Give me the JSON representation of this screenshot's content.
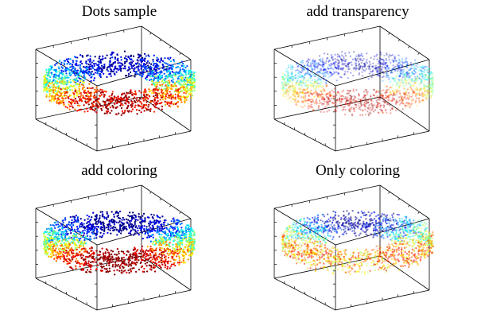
{
  "chart_data": [
    {
      "type": "scatter",
      "subtype": "3d-dots",
      "title": "Dots sample",
      "shape": "torus-like ring cloud",
      "point_count": 1800,
      "coloring": "jet colormap by height (z)",
      "alpha": 1.0,
      "axes_box": true,
      "grid": false,
      "tick_labels": "none"
    },
    {
      "type": "scatter",
      "subtype": "3d-dots",
      "title": "add transparency",
      "shape": "torus-like ring cloud",
      "point_count": 1800,
      "coloring": "jet colormap by height (z)",
      "alpha": 0.35,
      "axes_box": true,
      "grid": false,
      "tick_labels": "none"
    },
    {
      "type": "scatter",
      "subtype": "3d-dots",
      "title": "add coloring",
      "shape": "torus-like ring cloud",
      "point_count": 1800,
      "coloring": "jet colormap by separate color data (low at back, high at front)",
      "alpha": 1.0,
      "axes_box": true,
      "grid": false,
      "tick_labels": "none"
    },
    {
      "type": "scatter",
      "subtype": "3d-dots",
      "title": "Only coloring",
      "shape": "torus-like ring cloud",
      "point_count": 1800,
      "coloring": "jet colormap by separate color data, mixed",
      "alpha": 0.55,
      "axes_box": true,
      "grid": false,
      "tick_labels": "none"
    }
  ],
  "colors": {
    "axis": "#000000",
    "background": "#ffffff"
  }
}
